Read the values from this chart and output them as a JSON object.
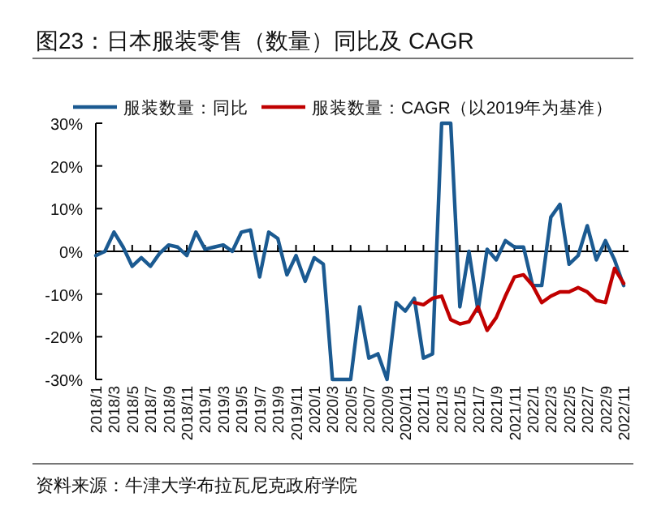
{
  "chart_data": {
    "type": "line",
    "title": "图23：日本服装零售（数量）同比及 CAGR",
    "annotations": [
      "资料来源：牛津大学布拉瓦尼克政府学院"
    ],
    "categories": [
      "2018/1",
      null,
      "2018/3",
      null,
      "2018/5",
      null,
      "2018/7",
      null,
      "2018/9",
      null,
      "2018/11",
      null,
      "2019/1",
      null,
      "2019/3",
      null,
      "2019/5",
      null,
      "2019/7",
      null,
      "2019/9",
      null,
      "2019/11",
      null,
      "2020/1",
      null,
      "2020/3",
      null,
      "2020/5",
      null,
      "2020/7",
      null,
      "2020/9",
      null,
      "2020/11",
      null,
      "2021/1",
      null,
      "2021/3",
      null,
      "2021/5",
      null,
      "2021/7",
      null,
      "2021/9",
      null,
      "2021/11",
      null,
      "2022/1",
      null,
      "2022/3",
      null,
      "2022/5",
      null,
      "2022/7",
      null,
      "2022/9",
      null,
      "2022/11"
    ],
    "series": [
      {
        "name": "服装数量：同比",
        "color": "#1b5a91",
        "values": [
          -1,
          0,
          4.5,
          1,
          -3.5,
          -1.5,
          -3.5,
          -0.5,
          1.5,
          1,
          -1,
          4.5,
          0.5,
          1,
          1.5,
          0,
          4.5,
          5,
          -6,
          4.5,
          3,
          -5.5,
          -1,
          -7,
          -1.5,
          -3,
          -30,
          -30,
          -30,
          -13,
          -25,
          -24,
          -30,
          -12,
          -14,
          -11,
          -25,
          -24,
          30,
          30,
          -13,
          0,
          -14,
          0.5,
          -2,
          2.5,
          1,
          1,
          -8,
          -8,
          8,
          11,
          -3,
          -1,
          6,
          -2,
          2.5,
          -2,
          -8
        ]
      },
      {
        "name": "服装数量：CAGR（以2019年为基准）",
        "color": "#c00000",
        "values": [
          null,
          null,
          null,
          null,
          null,
          null,
          null,
          null,
          null,
          null,
          null,
          null,
          null,
          null,
          null,
          null,
          null,
          null,
          null,
          null,
          null,
          null,
          null,
          null,
          null,
          null,
          null,
          null,
          null,
          null,
          null,
          null,
          null,
          null,
          null,
          -12,
          -12.5,
          -11,
          -10.5,
          -16,
          -17,
          -16.5,
          -13,
          -18.5,
          -15.5,
          -10.5,
          -6,
          -5.5,
          -8,
          -12,
          -10.5,
          -9.5,
          -9.5,
          -8.5,
          -9.5,
          -11.5,
          -12,
          -4,
          -7.5
        ]
      }
    ],
    "ylim": [
      -30,
      30
    ],
    "yticks": [
      {
        "value": 30,
        "label": "30%"
      },
      {
        "value": 20,
        "label": "20%"
      },
      {
        "value": 10,
        "label": "10%"
      },
      {
        "value": 0,
        "label": "0%"
      },
      {
        "value": -10,
        "label": "-10%"
      },
      {
        "value": -20,
        "label": "-20%"
      },
      {
        "value": -30,
        "label": "-30%"
      }
    ],
    "legend": "top"
  }
}
